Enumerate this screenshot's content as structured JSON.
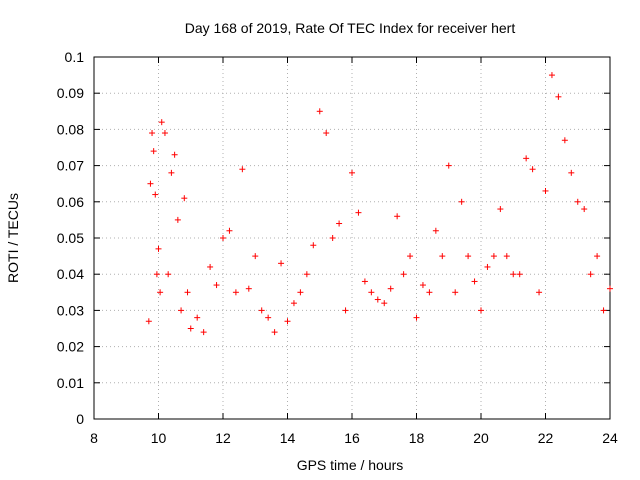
{
  "chart_data": {
    "type": "scatter",
    "title": "Day 168 of 2019, Rate Of TEC Index for receiver hert",
    "xlabel": "GPS time / hours",
    "ylabel": "ROTI / TECUs",
    "xlim": [
      8,
      24
    ],
    "ylim": [
      0,
      0.1
    ],
    "xticks": [
      8,
      10,
      12,
      14,
      16,
      18,
      20,
      22,
      24
    ],
    "xtick_labels": [
      "8",
      "10",
      "12",
      "14",
      "16",
      "18",
      "20",
      "22",
      "24"
    ],
    "yticks": [
      0,
      0.01,
      0.02,
      0.03,
      0.04,
      0.05,
      0.06,
      0.07,
      0.08,
      0.09,
      0.1
    ],
    "ytick_labels": [
      "0",
      "0.01",
      "0.02",
      "0.03",
      "0.04",
      "0.05",
      "0.06",
      "0.07",
      "0.08",
      "0.09",
      "0.1"
    ],
    "grid": true,
    "marker": "+",
    "series_color": "#ff0000",
    "series": [
      {
        "x": [
          9.7,
          9.75,
          9.8,
          9.85,
          9.9,
          9.95,
          10.0,
          10.05,
          10.1,
          10.2,
          10.3,
          10.4,
          10.5,
          10.6,
          10.7,
          10.8,
          10.9,
          11.0,
          11.2,
          11.4,
          11.6,
          11.8,
          12.0,
          12.2,
          12.4,
          12.6,
          12.8,
          13.0,
          13.2,
          13.4,
          13.6,
          13.8,
          14.0,
          14.2,
          14.4,
          14.6,
          14.8,
          15.0,
          15.2,
          15.4,
          15.6,
          15.8,
          16.0,
          16.2,
          16.4,
          16.6,
          16.8,
          17.0,
          17.2,
          17.4,
          17.6,
          17.8,
          18.0,
          18.2,
          18.4,
          18.6,
          18.8,
          19.0,
          19.2,
          19.4,
          19.6,
          19.8,
          20.0,
          20.2,
          20.4,
          20.6,
          20.8,
          21.0,
          21.2,
          21.4,
          21.6,
          21.8,
          22.0,
          22.2,
          22.4,
          22.6,
          22.8,
          23.0,
          23.2,
          23.4,
          23.6,
          23.8,
          24.0
        ],
        "y": [
          0.027,
          0.065,
          0.079,
          0.074,
          0.062,
          0.04,
          0.047,
          0.035,
          0.082,
          0.079,
          0.04,
          0.068,
          0.073,
          0.055,
          0.03,
          0.061,
          0.035,
          0.025,
          0.028,
          0.024,
          0.042,
          0.037,
          0.05,
          0.052,
          0.035,
          0.069,
          0.036,
          0.045,
          0.03,
          0.028,
          0.024,
          0.043,
          0.027,
          0.032,
          0.035,
          0.04,
          0.048,
          0.085,
          0.079,
          0.05,
          0.054,
          0.03,
          0.068,
          0.057,
          0.038,
          0.035,
          0.033,
          0.032,
          0.036,
          0.056,
          0.04,
          0.045,
          0.028,
          0.037,
          0.035,
          0.052,
          0.045,
          0.07,
          0.035,
          0.06,
          0.045,
          0.038,
          0.03,
          0.042,
          0.045,
          0.058,
          0.045,
          0.04,
          0.04,
          0.072,
          0.069,
          0.035,
          0.063,
          0.095,
          0.089,
          0.077,
          0.068,
          0.06,
          0.058,
          0.04,
          0.045,
          0.03,
          0.036
        ]
      }
    ]
  }
}
